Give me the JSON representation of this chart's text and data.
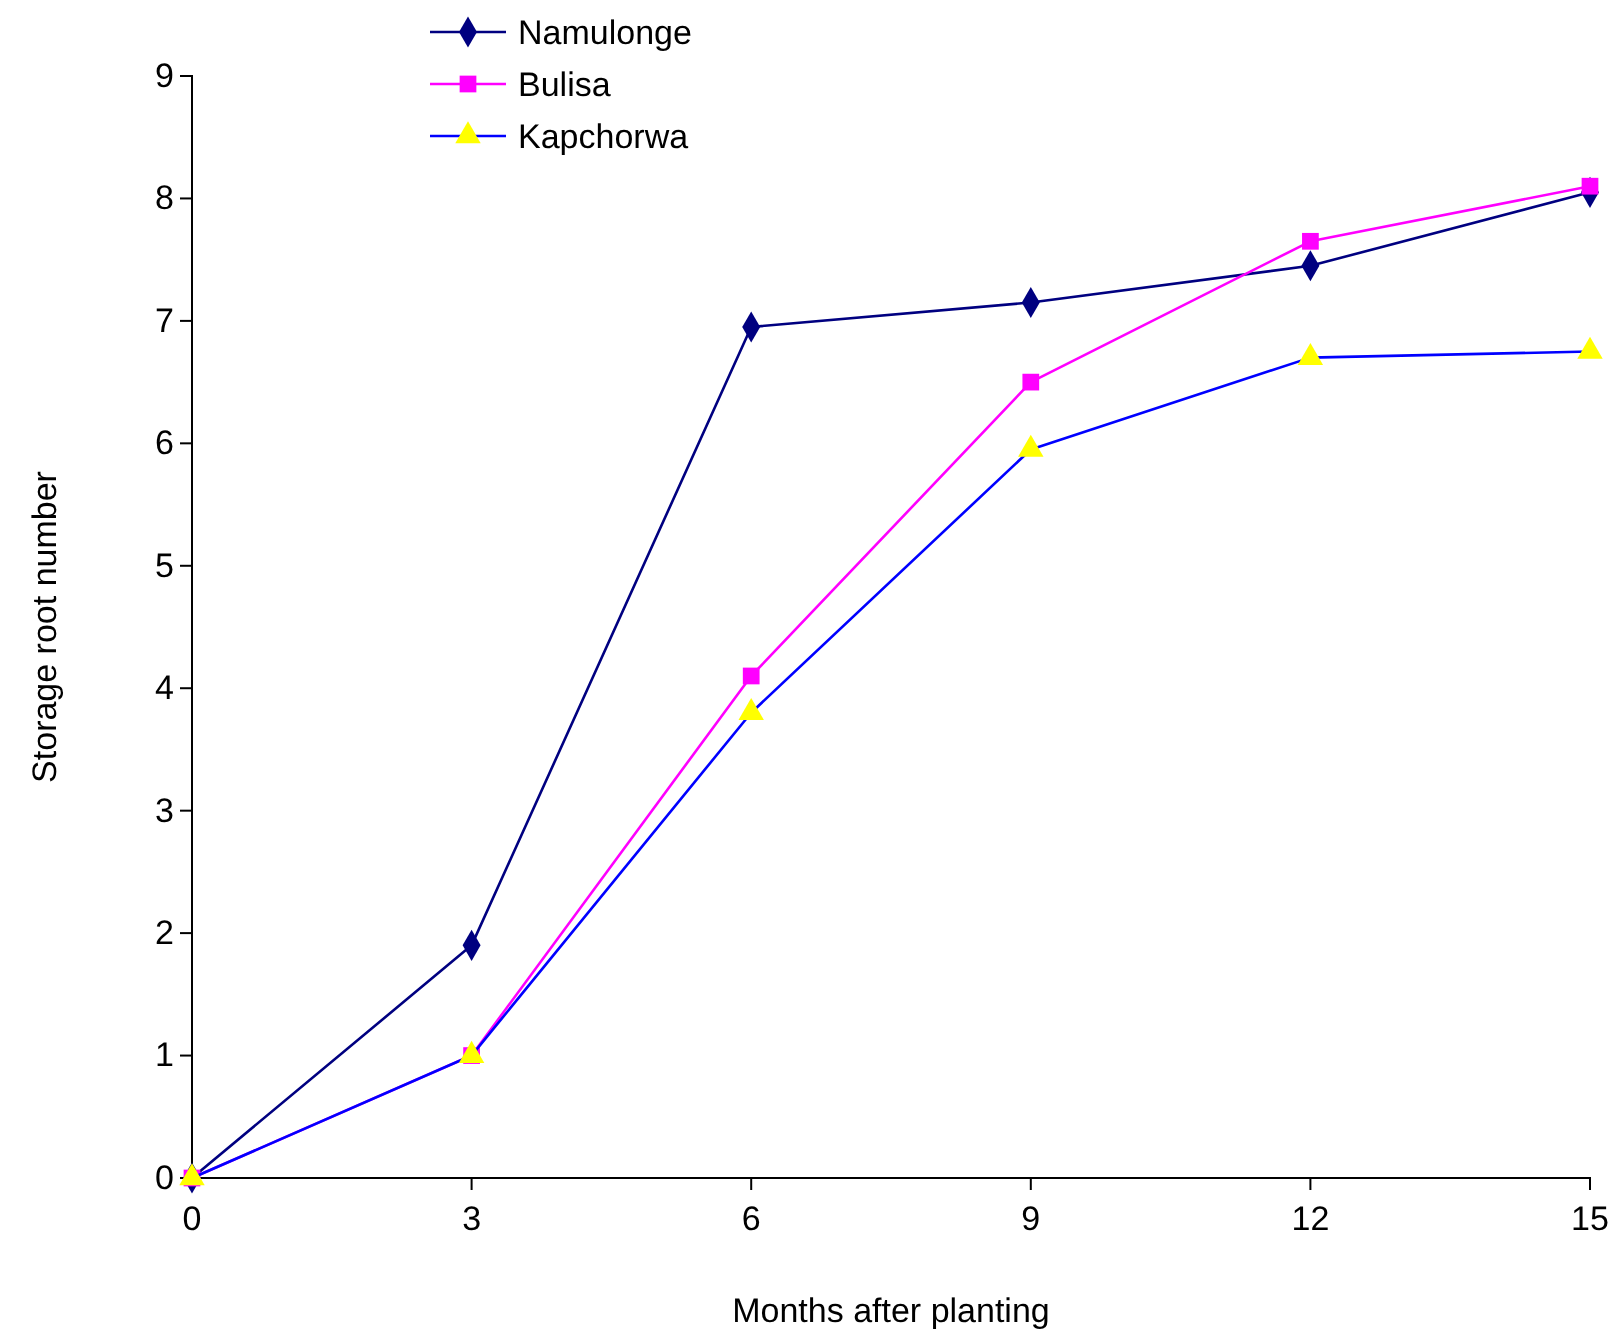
{
  "chart_data": {
    "type": "line",
    "xlabel": "Months after planting",
    "ylabel": "Storage root number",
    "x": [
      0,
      3,
      6,
      9,
      12,
      15
    ],
    "xlim": [
      0,
      15
    ],
    "xticks": [
      0,
      3,
      6,
      9,
      12,
      15
    ],
    "ylim": [
      0,
      9
    ],
    "yticks": [
      0,
      1,
      2,
      3,
      4,
      5,
      6,
      7,
      8,
      9
    ],
    "grid": false,
    "legend": "top left",
    "series": [
      {
        "name": "Namulonge",
        "color": "#000080",
        "marker": "diamond",
        "values": [
          0,
          1.9,
          6.95,
          7.15,
          7.45,
          8.05
        ]
      },
      {
        "name": "Bulisa",
        "color": "#ff00ff",
        "marker": "square",
        "values": [
          0,
          1.0,
          4.1,
          6.5,
          7.65,
          8.1
        ]
      },
      {
        "name": "Kapchorwa",
        "color": "#0000ff",
        "colors": [
          "#ffff00",
          "#ffff00",
          "#ffff00",
          "#ffff00",
          "#ffff00",
          "#ffff00"
        ],
        "marker": "triangle",
        "values": [
          0,
          1.0,
          3.8,
          5.95,
          6.7,
          6.75
        ]
      }
    ]
  }
}
